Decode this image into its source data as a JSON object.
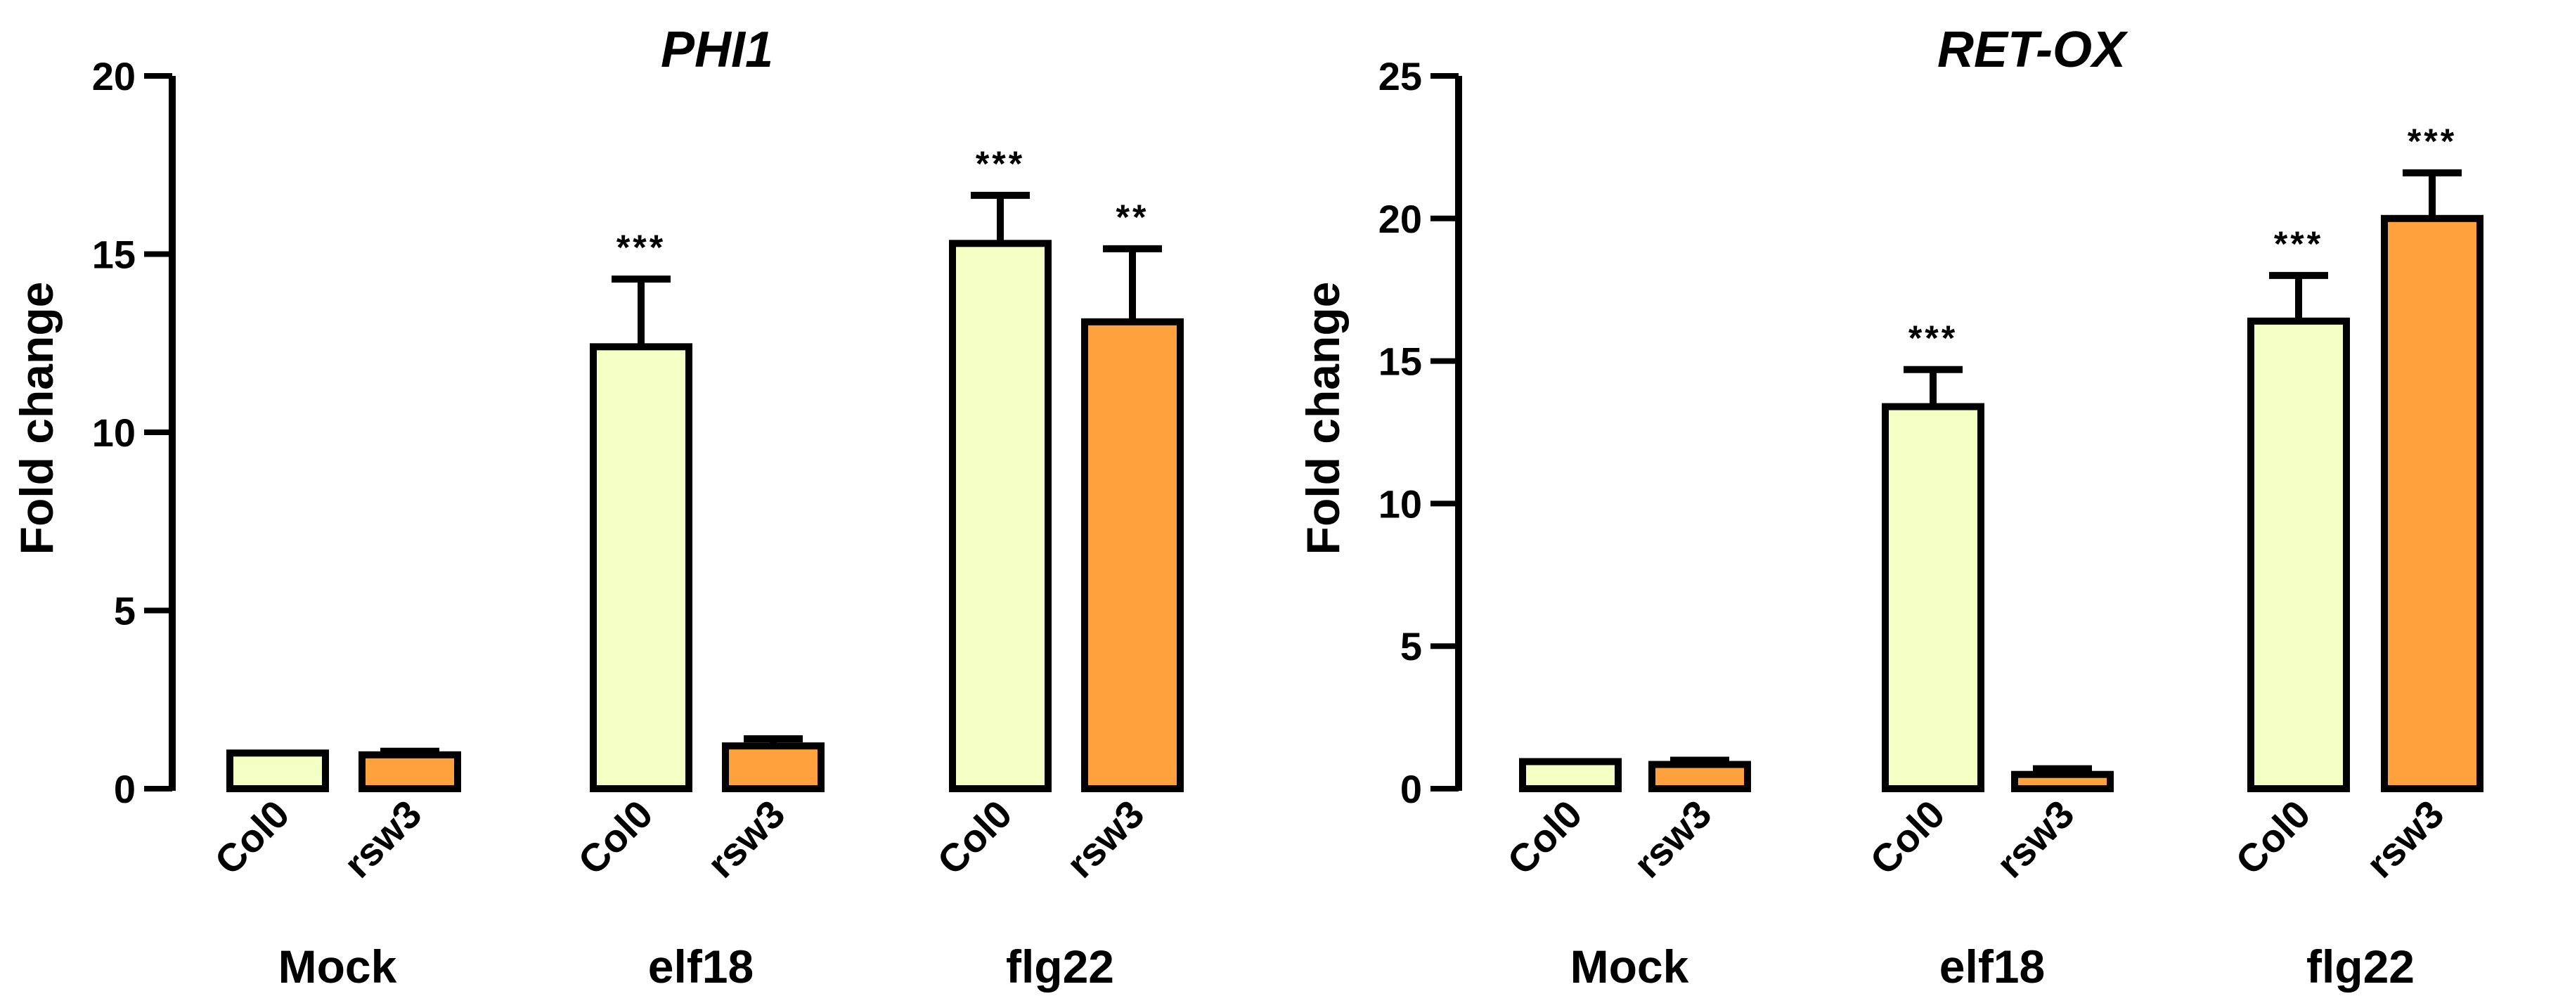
{
  "colors": {
    "col0": "#f4ffc4",
    "rsw3": "#ffa13d",
    "stroke": "#000000"
  },
  "chart_data": [
    {
      "type": "bar",
      "title": "PHI1",
      "ylabel": "Fold change",
      "ylim": [
        0,
        20
      ],
      "yticks": [
        0,
        5,
        10,
        15,
        20
      ],
      "groups": [
        "Mock",
        "elf18",
        "flg22"
      ],
      "categories": [
        "Col0",
        "rsw3",
        "Col0",
        "rsw3",
        "Col0",
        "rsw3"
      ],
      "series": [
        {
          "values": [
            1.0,
            0.95,
            12.4,
            1.2,
            15.3,
            13.1
          ],
          "errors": [
            0.0,
            0.1,
            1.9,
            0.2,
            1.35,
            2.05
          ],
          "genotype": [
            "col0",
            "rsw3",
            "col0",
            "rsw3",
            "col0",
            "rsw3"
          ],
          "significance": [
            "",
            "",
            "***",
            "",
            "***",
            "**"
          ]
        }
      ],
      "grid": false,
      "legend": "none"
    },
    {
      "type": "bar",
      "title": "RET-OX",
      "ylabel": "Fold change",
      "ylim": [
        0,
        25
      ],
      "yticks": [
        0,
        5,
        10,
        15,
        20,
        25
      ],
      "groups": [
        "Mock",
        "elf18",
        "flg22"
      ],
      "categories": [
        "Col0",
        "rsw3",
        "Col0",
        "rsw3",
        "Col0",
        "rsw3"
      ],
      "series": [
        {
          "values": [
            0.95,
            0.85,
            13.4,
            0.5,
            16.4,
            20.0
          ],
          "errors": [
            0.0,
            0.15,
            1.3,
            0.2,
            1.6,
            1.6
          ],
          "genotype": [
            "col0",
            "rsw3",
            "col0",
            "rsw3",
            "col0",
            "rsw3"
          ],
          "significance": [
            "",
            "",
            "***",
            "",
            "***",
            "***"
          ]
        }
      ],
      "grid": false,
      "legend": "none"
    }
  ]
}
